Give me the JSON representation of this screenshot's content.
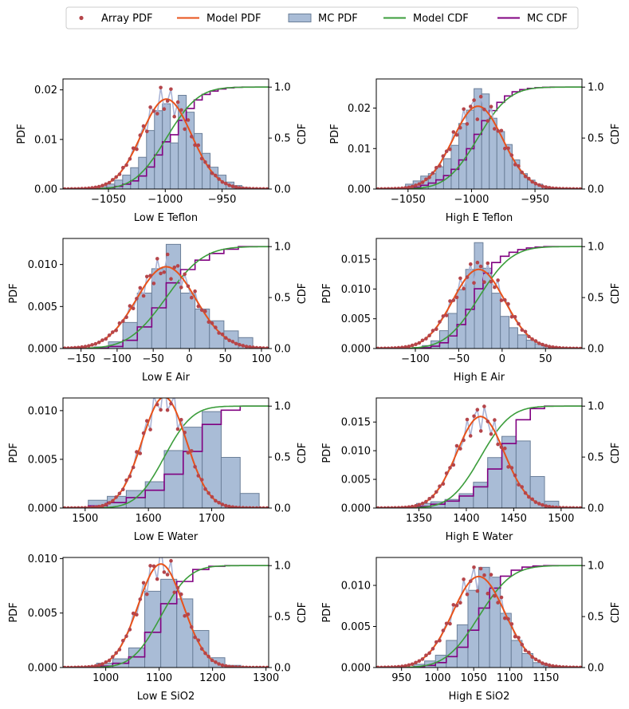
{
  "legend": [
    {
      "label": "Array PDF",
      "kind": "dot",
      "color": "#b5454a"
    },
    {
      "label": "Model PDF",
      "kind": "line",
      "color": "#e8521a"
    },
    {
      "label": "MC PDF",
      "kind": "patch",
      "color": "#a9bcd6",
      "edge": "#6b7f99"
    },
    {
      "label": "Model CDF",
      "kind": "line",
      "color": "#3b9d3b"
    },
    {
      "label": "MC CDF",
      "kind": "line",
      "color": "#800080"
    }
  ],
  "colors": {
    "array_pdf": "#b5454a",
    "array_line": "#aab4d6",
    "model_pdf": "#e8521a",
    "mc_pdf_fill": "#a9bcd6",
    "mc_pdf_edge": "#6b7f99",
    "model_cdf": "#3b9d3b",
    "mc_cdf": "#800080"
  },
  "chart_data": [
    {
      "type": "bar",
      "xlabel": "Low E Teflon",
      "ylabel": "PDF",
      "y2label": "CDF",
      "xlim": [
        -1090,
        -909
      ],
      "ylim": [
        0,
        0.0222
      ],
      "xticks": [
        -1050,
        -1000,
        -950
      ],
      "yticks": [
        0.0,
        0.01,
        0.02
      ],
      "ytick_labels": [
        "0.00",
        "0.01",
        "0.02"
      ],
      "mean": -999,
      "sd": 22,
      "bin_width": 7,
      "n_bins": 20,
      "hist_values": [
        0.0002,
        0.0005,
        0.001,
        0.0018,
        0.0028,
        0.0043,
        0.0064,
        0.0118,
        0.0158,
        0.0172,
        0.0093,
        0.0189,
        0.0155,
        0.0112,
        0.0072,
        0.0044,
        0.0028,
        0.0014,
        0.0007,
        0.0003
      ]
    },
    {
      "type": "bar",
      "xlabel": "High E Teflon",
      "ylabel": "PDF",
      "y2label": "CDF",
      "xlim": [
        -1075,
        -913
      ],
      "ylim": [
        0,
        0.0272
      ],
      "xticks": [
        -1050,
        -1000,
        -950
      ],
      "yticks": [
        0.0,
        0.01,
        0.02
      ],
      "ytick_labels": [
        "0.00",
        "0.01",
        "0.02"
      ],
      "mean": -995,
      "sd": 19.5,
      "bin_width": 6,
      "n_bins": 20,
      "hist_values": [
        0.0012,
        0.002,
        0.0032,
        0.0038,
        0.0055,
        0.0075,
        0.0108,
        0.0162,
        0.0195,
        0.0248,
        0.0235,
        0.0175,
        0.0142,
        0.011,
        0.0072,
        0.0038,
        0.0022,
        0.0012,
        0.0006,
        0.0003
      ]
    },
    {
      "type": "bar",
      "xlabel": "Low E Air",
      "ylabel": "PDF",
      "y2label": "CDF",
      "xlim": [
        -175,
        110
      ],
      "ylim": [
        0,
        0.0131
      ],
      "xticks": [
        -150,
        -100,
        -50,
        0,
        50,
        100
      ],
      "yticks": [
        0.0,
        0.005,
        0.01
      ],
      "ytick_labels": [
        "0.000",
        "0.005",
        "0.010"
      ],
      "mean": -32,
      "sd": 41,
      "bin_width": 20,
      "n_bins": 11,
      "hist_values": [
        0.0002,
        0.0008,
        0.0031,
        0.0066,
        0.0095,
        0.0124,
        0.0066,
        0.0047,
        0.0033,
        0.0021,
        0.0013
      ]
    },
    {
      "type": "bar",
      "xlabel": "High E Air",
      "ylabel": "PDF",
      "y2label": "CDF",
      "xlim": [
        -145,
        92
      ],
      "ylim": [
        0,
        0.0185
      ],
      "xticks": [
        -100,
        -50,
        0,
        50
      ],
      "yticks": [
        0.0,
        0.005,
        0.01,
        0.015
      ],
      "ytick_labels": [
        "0.000",
        "0.005",
        "0.010",
        "0.015"
      ],
      "mean": -27,
      "sd": 30,
      "bin_width": 10,
      "n_bins": 16,
      "hist_values": [
        0.0002,
        0.0005,
        0.0013,
        0.003,
        0.0059,
        0.0099,
        0.0133,
        0.0178,
        0.0135,
        0.0093,
        0.0054,
        0.0035,
        0.0023,
        0.0014,
        0.0008,
        0.0004
      ]
    },
    {
      "type": "bar",
      "xlabel": "Low E Water",
      "ylabel": "PDF",
      "y2label": "CDF",
      "xlim": [
        1465,
        1790
      ],
      "ylim": [
        0,
        0.0113
      ],
      "xticks": [
        1500,
        1600,
        1700
      ],
      "yticks": [
        0.0,
        0.005,
        0.01
      ],
      "ytick_labels": [
        "0.000",
        "0.005",
        "0.010"
      ],
      "mean": 1625,
      "sd": 35,
      "bin_width": 30,
      "n_bins": 9,
      "hist_values": [
        0.0008,
        0.0012,
        0.0018,
        0.0027,
        0.0059,
        0.0083,
        0.0099,
        0.0052,
        0.0015
      ]
    },
    {
      "type": "bar",
      "xlabel": "High E Water",
      "ylabel": "PDF",
      "y2label": "CDF",
      "xlim": [
        1305,
        1522
      ],
      "ylim": [
        0,
        0.0192
      ],
      "xticks": [
        1350,
        1400,
        1450,
        1500
      ],
      "yticks": [
        0.0,
        0.005,
        0.01,
        0.015
      ],
      "ytick_labels": [
        "0.000",
        "0.005",
        "0.010",
        "0.015"
      ],
      "mean": 1415,
      "sd": 25,
      "bin_width": 15,
      "n_bins": 10,
      "hist_values": [
        0.0008,
        0.0011,
        0.0015,
        0.0025,
        0.0045,
        0.0088,
        0.0125,
        0.0117,
        0.0055,
        0.0012
      ]
    },
    {
      "type": "bar",
      "xlabel": "Low E SiO2",
      "ylabel": "PDF",
      "y2label": "CDF",
      "xlim": [
        920,
        1305
      ],
      "ylim": [
        0,
        0.0101
      ],
      "xticks": [
        1000,
        1100,
        1200,
        1300
      ],
      "yticks": [
        0.0,
        0.005,
        0.01
      ],
      "ytick_labels": [
        "0.000",
        "0.005",
        "0.010"
      ],
      "mean": 1103,
      "sd": 42,
      "bin_width": 30,
      "n_bins": 9,
      "hist_values": [
        0.0004,
        0.0008,
        0.0018,
        0.007,
        0.0081,
        0.0063,
        0.0034,
        0.0009,
        0.0002
      ]
    },
    {
      "type": "bar",
      "xlabel": "High E SiO2",
      "ylabel": "PDF",
      "y2label": "CDF",
      "xlim": [
        915,
        1200
      ],
      "ylim": [
        0,
        0.0134
      ],
      "xticks": [
        950,
        1000,
        1050,
        1100,
        1150
      ],
      "yticks": [
        0.0,
        0.005,
        0.01
      ],
      "ytick_labels": [
        "0.000",
        "0.005",
        "0.010"
      ],
      "mean": 1057,
      "sd": 36,
      "bin_width": 15,
      "n_bins": 13,
      "hist_values": [
        0.0004,
        0.0008,
        0.0015,
        0.0033,
        0.0052,
        0.0094,
        0.0122,
        0.011,
        0.0066,
        0.0033,
        0.0017,
        0.0006,
        0.0002
      ]
    }
  ],
  "cdf_axis": {
    "yticks": [
      0.0,
      0.5,
      1.0
    ],
    "ytick_labels": [
      "0.0",
      "0.5",
      "1.0"
    ]
  }
}
